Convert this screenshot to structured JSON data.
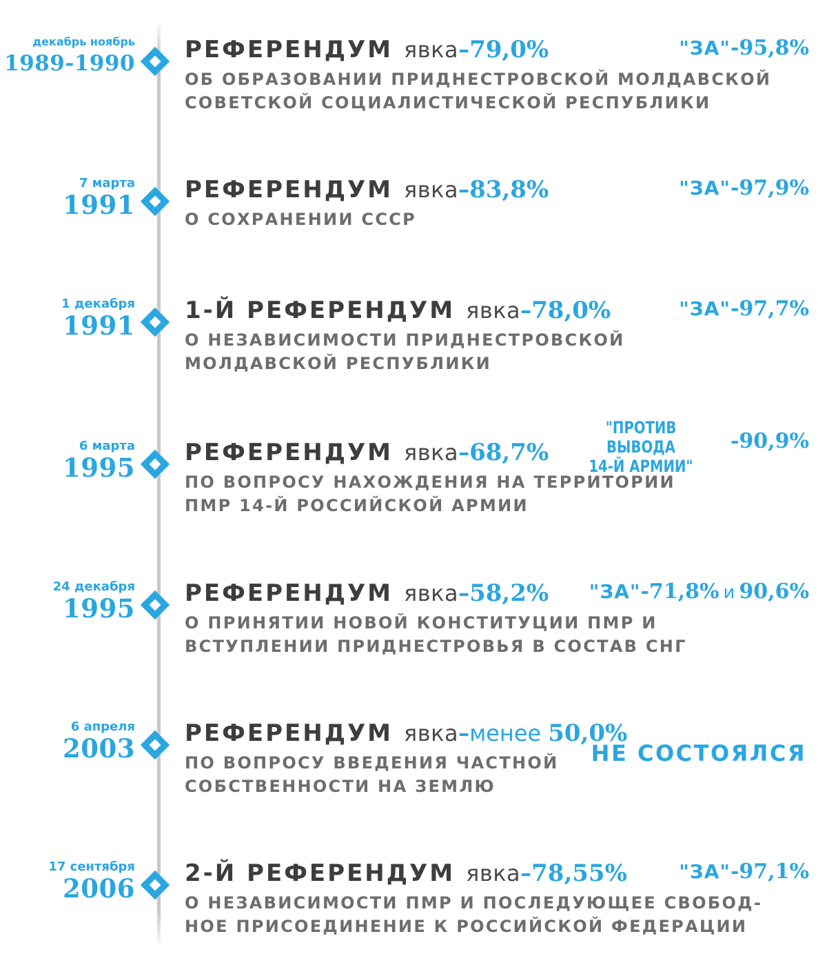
{
  "timeline": [
    {
      "date_sub": "декабрь  ноябрь",
      "year": "1989-1990",
      "title": "РЕФЕРЕНДУМ",
      "turnout_label": "явка",
      "turnout_dash": "–",
      "turnout_qualifier": "",
      "turnout_value": "79,0%",
      "description_lines": [
        "ОБ ОБРАЗОВАНИИ ПРИДНЕСТРОВСКОЙ МОЛДАВСКОЙ",
        "СОВЕТСКОЙ СОЦИАЛИСТИЧЕСКОЙ РЕСПУБЛИКИ"
      ],
      "result_label": "\"ЗА\"",
      "result_value": "-95,8%"
    },
    {
      "date_sub": "7 марта",
      "year": "1991",
      "title": "РЕФЕРЕНДУМ",
      "turnout_label": "явка",
      "turnout_dash": "–",
      "turnout_qualifier": "",
      "turnout_value": "83,8%",
      "description_lines": [
        "О СОХРАНЕНИИ СССР"
      ],
      "result_label": "\"ЗА\"",
      "result_value": "-97,9%"
    },
    {
      "date_sub": "1 декабря",
      "year": "1991",
      "title": "1-Й РЕФЕРЕНДУМ",
      "turnout_label": "явка",
      "turnout_dash": "–",
      "turnout_qualifier": "",
      "turnout_value": "78,0%",
      "description_lines": [
        "О НЕЗАВИСИМОСТИ ПРИДНЕСТРОВСКОЙ",
        "МОЛДАВСКОЙ РЕСПУБЛИКИ"
      ],
      "result_label": "\"ЗА\"",
      "result_value": "-97,7%"
    },
    {
      "date_sub": "6 марта",
      "year": "1995",
      "title": "РЕФЕРЕНДУМ",
      "turnout_label": "явка",
      "turnout_dash": "–",
      "turnout_qualifier": "",
      "turnout_value": "68,7%",
      "description_lines": [
        "ПО ВОПРОСУ НАХОЖДЕНИЯ НА ТЕРРИТОРИИ",
        "ПМР 14-Й РОССИЙСКОЙ АРМИИ"
      ],
      "result_label_lines": [
        "\"ПРОТИВ ВЫВОДА",
        "14-Й АРМИИ\""
      ],
      "result_value": "-90,9%"
    },
    {
      "date_sub": "24 декабря",
      "year": "1995",
      "title": "РЕФЕРЕНДУМ",
      "turnout_label": "явка",
      "turnout_dash": "–",
      "turnout_qualifier": "",
      "turnout_value": "58,2%",
      "description_lines": [
        "О ПРИНЯТИИ НОВОЙ КОНСТИТУЦИИ ПМР И",
        "ВСТУПЛЕНИИ ПРИДНЕСТРОВЬЯ В СОСТАВ СНГ"
      ],
      "result_label": "\"ЗА\"",
      "result_value": "-71,8%",
      "result_conjunction": "и",
      "result_value_2": "90,6%"
    },
    {
      "date_sub": "6 апреля",
      "year": "2003",
      "title": "РЕФЕРЕНДУМ",
      "turnout_label": "явка",
      "turnout_dash": "–",
      "turnout_qualifier": "менее",
      "turnout_value": "50,0%",
      "description_lines": [
        "ПО ВОПРОСУ ВВЕДЕНИЯ ЧАСТНОЙ",
        "СОБСТВЕННОСТИ НА ЗЕМЛЮ"
      ],
      "status": "НЕ СОСТОЯЛСЯ"
    },
    {
      "date_sub": "17 сентября",
      "year": "2006",
      "title": "2-Й РЕФЕРЕНДУМ",
      "turnout_label": "явка",
      "turnout_dash": "–",
      "turnout_qualifier": "",
      "turnout_value": "78,55%",
      "description_lines": [
        "О НЕЗАВИСИМОСТИ ПМР И ПОСЛЕДУЮЩЕЕ СВОБОД-",
        "НОЕ ПРИСОЕДИНЕНИЕ  К РОССИЙСКОЙ ФЕДЕРАЦИИ"
      ],
      "result_label": "\"ЗА\"",
      "result_value": "-97,1%"
    }
  ],
  "colors": {
    "accent": "#2aa6e0",
    "title": "#3d3d3d",
    "description": "#6d6d6d",
    "timeline_line": "#c9c9c9"
  }
}
